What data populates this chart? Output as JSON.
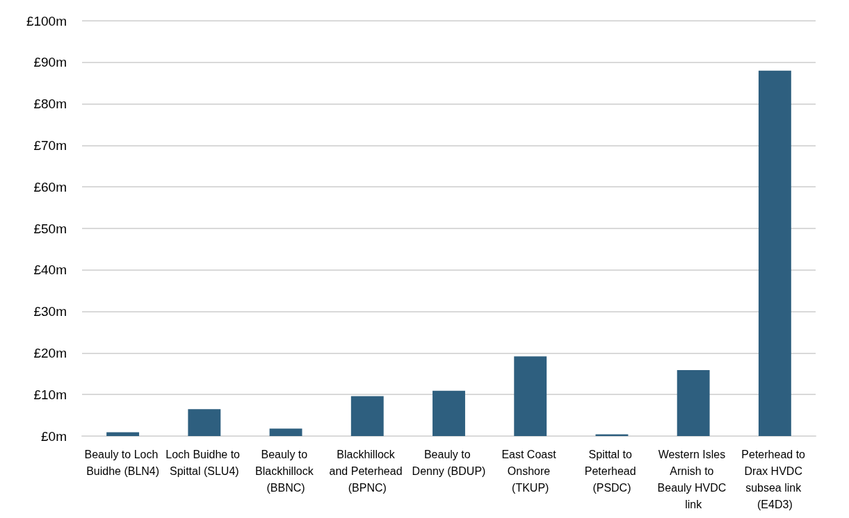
{
  "chart_data": {
    "type": "bar",
    "categories": [
      "Beauly to Loch Buidhe (BLN4)",
      "Loch Buidhe to Spittal (SLU4)",
      "Beauly to Blackhillock (BBNC)",
      "Blackhillock and Peterhead (BPNC)",
      "Beauly to Denny (BDUP)",
      "East Coast Onshore (TKUP)",
      "Spittal to Peterhead (PSDC)",
      "Western Isles Arnish to Beauly HVDC link",
      "Peterhead to Drax HVDC subsea link (E4D3)"
    ],
    "values": [
      0.9,
      6.5,
      1.8,
      9.6,
      10.9,
      19.2,
      0.4,
      15.9,
      88
    ],
    "color": "#2e5f7f",
    "ylim": [
      0,
      100
    ],
    "yticks": [
      {
        "value": 0,
        "label": "£0m"
      },
      {
        "value": 10,
        "label": "£10m"
      },
      {
        "value": 20,
        "label": "£20m"
      },
      {
        "value": 30,
        "label": "£30m"
      },
      {
        "value": 40,
        "label": "£40m"
      },
      {
        "value": 50,
        "label": "£50m"
      },
      {
        "value": 60,
        "label": "£60m"
      },
      {
        "value": 70,
        "label": "£70m"
      },
      {
        "value": 80,
        "label": "£80m"
      },
      {
        "value": 90,
        "label": "£90m"
      },
      {
        "value": 100,
        "label": "£100m"
      }
    ],
    "grid": "y"
  }
}
